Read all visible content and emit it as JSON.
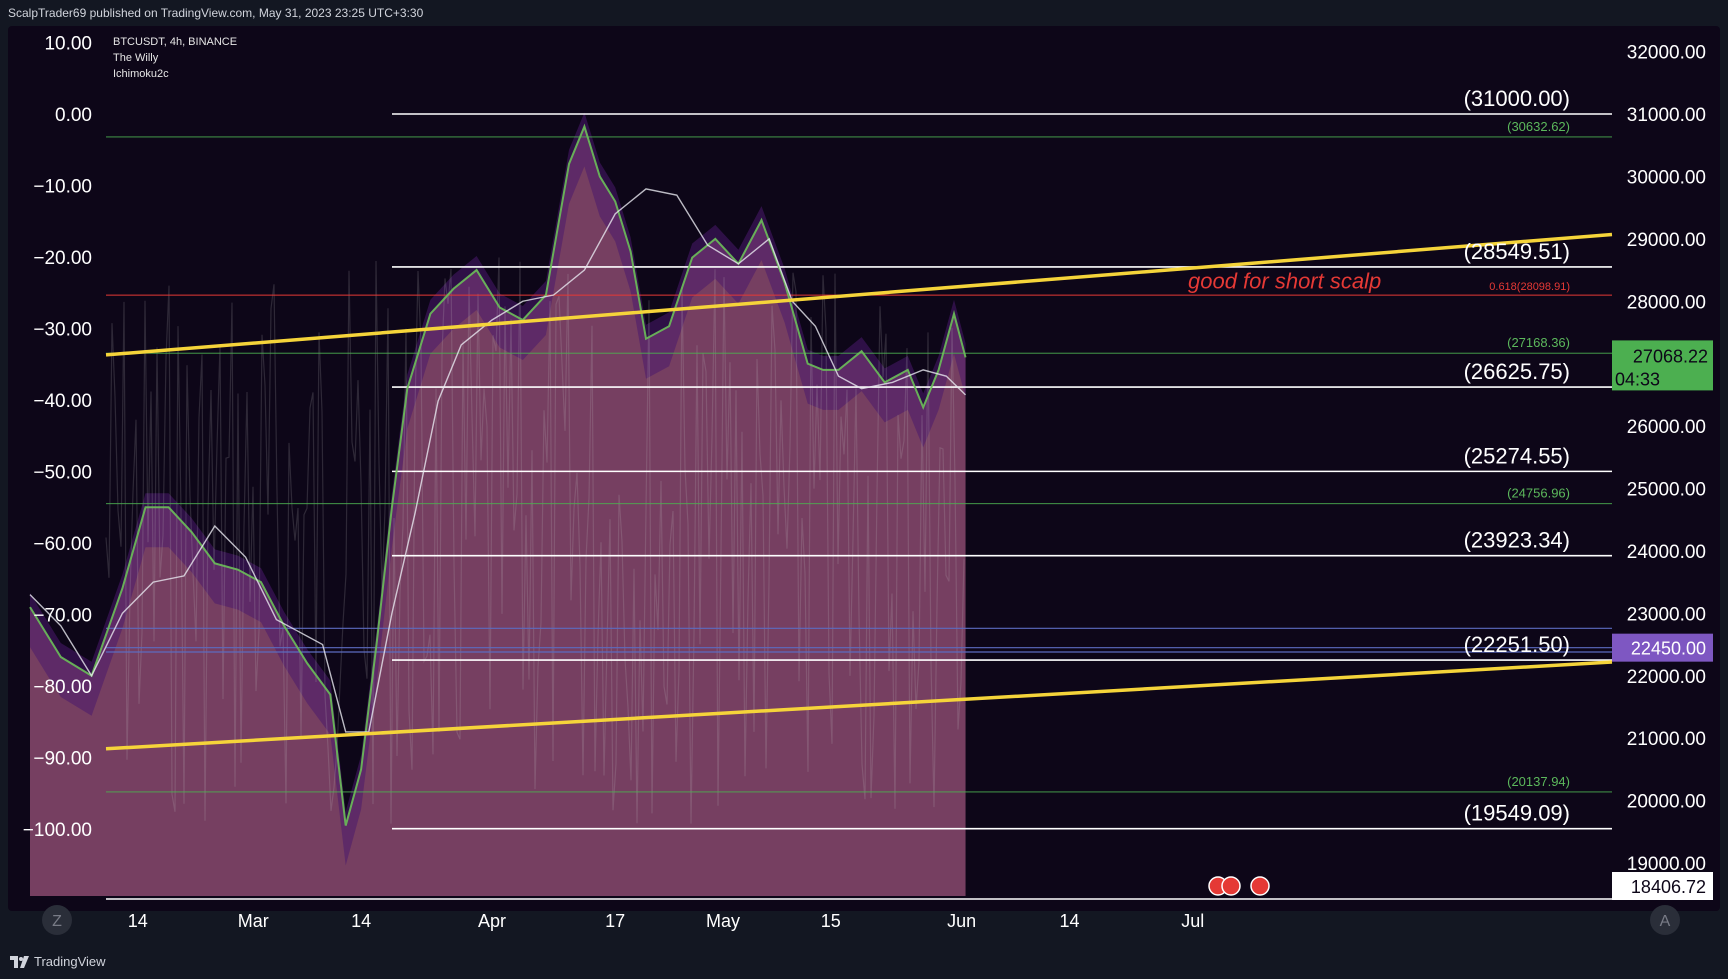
{
  "header": {
    "publish_line": "ScalpTrader69 published on TradingView.com, May 31, 2023 23:25 UTC+3:30"
  },
  "legend": {
    "symbol": "BTCUSDT, 4h, BINANCE",
    "indicator1": "The Willy",
    "indicator2": "Ichimoku2c"
  },
  "footer": {
    "brand": "TradingView",
    "logo_icon": "tradingview-logo-icon"
  },
  "buttons": {
    "left_zoom": "Z",
    "right_auto": "A"
  },
  "colors": {
    "background": "#0d0618",
    "price_fill": "#8a4a6e",
    "yellow_line": "#f5d43a",
    "green_level": "#4caf50",
    "red_level": "#e53935",
    "white_level": "#ffffff",
    "current_price_tag": "#4caf50",
    "purple_tag": "#7e57c2"
  },
  "chart_data": {
    "type": "line",
    "title": "",
    "price_axis": {
      "ylim": [
        18200,
        32300
      ],
      "ticks": [
        32000,
        31000,
        30000,
        29000,
        28000,
        27000,
        26000,
        25000,
        24000,
        23000,
        22000,
        21000,
        20000,
        19000
      ],
      "tick_labels": [
        "32000.00",
        "31000.00",
        "30000.00",
        "29000.00",
        "28000.00",
        "",
        "26000.00",
        "25000.00",
        "24000.00",
        "23000.00",
        "22000.00",
        "21000.00",
        "20000.00",
        "19000.00"
      ]
    },
    "osc_axis": {
      "ticks": [
        10,
        0,
        -10,
        -20,
        -30,
        -40,
        -50,
        -60,
        -70,
        -80,
        -90,
        -100
      ],
      "tick_labels": [
        "10.00",
        "0.00",
        "−10.00",
        "−20.00",
        "−30.00",
        "−40.00",
        "−50.00",
        "−60.00",
        "−70.00",
        "−80.00",
        "−90.00",
        "−100.00"
      ]
    },
    "time_axis": {
      "labels": [
        "14",
        "Mar",
        "14",
        "Apr",
        "17",
        "May",
        "15",
        "Jun",
        "14",
        "Jul"
      ],
      "positions_days": [
        14,
        29,
        43,
        60,
        76,
        90,
        104,
        121,
        135,
        151
      ]
    },
    "white_levels": [
      {
        "price": 31000,
        "label": "(31000.00)"
      },
      {
        "price": 28549.51,
        "label": "(28549.51)"
      },
      {
        "price": 26625.75,
        "label": "(26625.75)"
      },
      {
        "price": 25274.55,
        "label": "(25274.55)"
      },
      {
        "price": 23923.34,
        "label": "(23923.34)"
      },
      {
        "price": 22251.5,
        "label": "(22251.50)"
      },
      {
        "price": 19549.09,
        "label": "(19549.09)"
      }
    ],
    "green_levels": [
      {
        "price": 30632.62,
        "label": "(30632.62)"
      },
      {
        "price": 27168.36,
        "label": "(27168.36)"
      },
      {
        "price": 24756.96,
        "label": "(24756.96)"
      },
      {
        "price": 20137.94,
        "label": "(20137.94)"
      }
    ],
    "red_level": {
      "price": 28098.91,
      "label": "0.618(28098.91)"
    },
    "blue_levels": [
      22760,
      22450,
      22380
    ],
    "annotation": {
      "text": "good for short scalp",
      "price": 28080,
      "day": 119
    },
    "current_price": {
      "value": "27068.22",
      "countdown": "04:33",
      "price": 27068.22
    },
    "purple_tag": {
      "value": "22450.00",
      "price": 22450
    },
    "low_tag": {
      "value": "18406.72",
      "price": 18406.72
    },
    "trendlines": [
      {
        "name": "upper",
        "from": {
          "day": 0,
          "price": 27140
        },
        "to": {
          "day": 165,
          "price": 29070
        }
      },
      {
        "name": "lower",
        "from": {
          "day": 0,
          "price": 20830
        },
        "to": {
          "day": 165,
          "price": 22220
        }
      }
    ],
    "price_series_days": [
      0,
      4,
      8,
      12,
      15,
      18,
      21,
      24,
      27,
      30,
      33,
      36,
      39,
      41,
      43,
      45,
      47,
      49,
      52,
      55,
      58,
      61,
      64,
      67,
      70,
      72,
      74,
      76,
      78,
      80,
      83,
      86,
      89,
      92,
      95,
      98,
      101,
      103,
      105,
      108,
      111,
      114,
      116,
      118,
      120,
      121.5
    ],
    "price_series_values": [
      23100,
      22300,
      22000,
      23400,
      24700,
      24700,
      24300,
      23800,
      23700,
      23500,
      22800,
      22200,
      21700,
      19600,
      20500,
      22500,
      24700,
      26600,
      27800,
      28200,
      28500,
      27900,
      27700,
      28100,
      30200,
      30800,
      30000,
      29600,
      28800,
      27400,
      27600,
      28700,
      29000,
      28600,
      29300,
      28300,
      27000,
      26900,
      26900,
      27200,
      26700,
      26900,
      26300,
      26900,
      27800,
      27100
    ],
    "overlay_series_days": [
      0,
      4,
      8,
      12,
      16,
      20,
      24,
      28,
      32,
      35,
      38,
      41,
      44,
      47,
      50,
      53,
      56,
      60,
      64,
      68,
      72,
      76,
      80,
      84,
      88,
      92,
      96,
      99,
      102,
      105,
      108,
      112,
      116,
      119,
      121.5
    ],
    "overlay_series_values": [
      23300,
      22800,
      22000,
      23000,
      23500,
      23600,
      24400,
      23900,
      22900,
      22700,
      22500,
      21100,
      21100,
      23000,
      24600,
      26400,
      27300,
      27700,
      28000,
      28100,
      28500,
      29400,
      29800,
      29700,
      28900,
      28600,
      29000,
      28000,
      27600,
      26800,
      26600,
      26700,
      26900,
      26800,
      26500
    ]
  }
}
